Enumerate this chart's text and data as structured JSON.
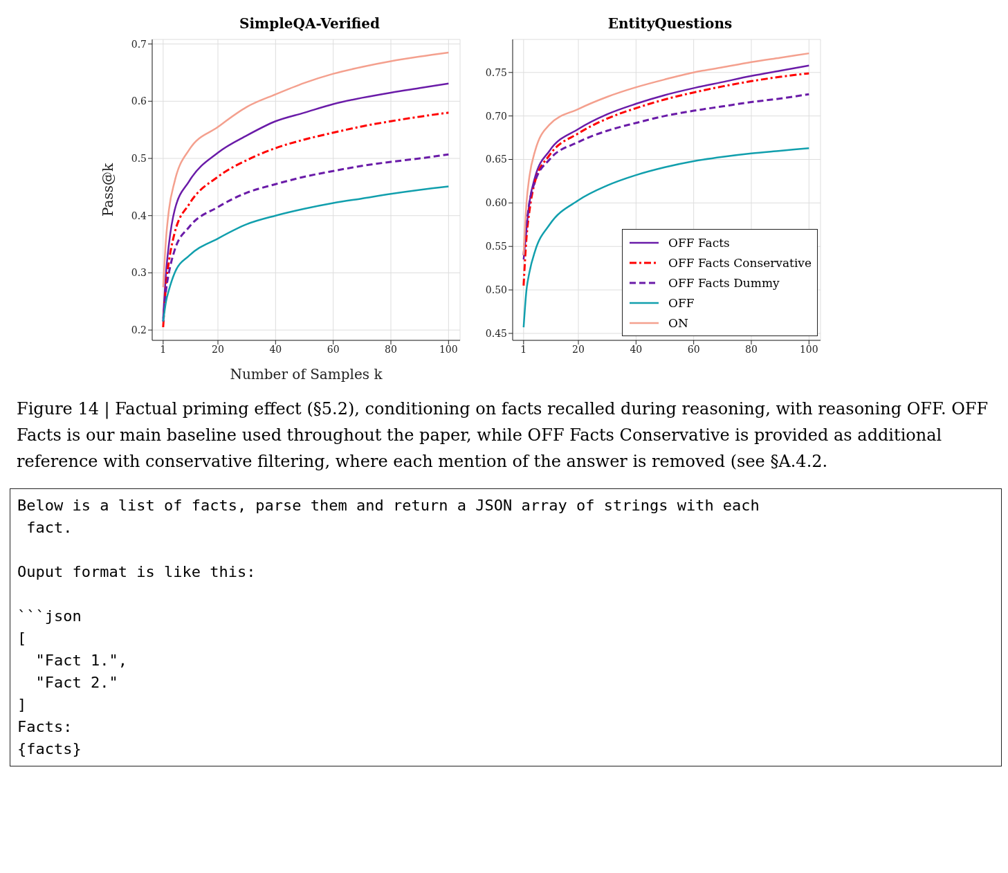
{
  "chart_data": [
    {
      "type": "line",
      "title": "SimpleQA-Verified",
      "xlabel": "Number of Samples k",
      "ylabel": "Pass@k",
      "x": [
        1,
        2,
        3,
        5,
        10,
        20,
        30,
        40,
        50,
        60,
        70,
        80,
        90,
        100
      ],
      "xlim": [
        -2.8,
        104
      ],
      "xticks": [
        1,
        20,
        40,
        60,
        80,
        100
      ],
      "ylim": [
        0.182,
        0.708
      ],
      "yticks": [
        0.2,
        0.3,
        0.4,
        0.5,
        0.6,
        0.7
      ],
      "grid": true,
      "legend": false,
      "series": [
        {
          "color": "#6a1ba8",
          "line_style": "solid",
          "values": [
            0.22,
            0.3,
            0.35,
            0.41,
            0.46,
            0.51,
            0.54,
            0.565,
            0.58,
            0.595,
            0.606,
            0.615,
            0.623,
            0.631
          ]
        },
        {
          "color": "#ff0000",
          "line_style": "dashdot",
          "values": [
            0.205,
            0.28,
            0.32,
            0.37,
            0.42,
            0.468,
            0.497,
            0.518,
            0.533,
            0.545,
            0.556,
            0.565,
            0.573,
            0.58
          ]
        },
        {
          "color": "#6a1ba8",
          "line_style": "dashed",
          "values": [
            0.215,
            0.27,
            0.3,
            0.34,
            0.38,
            0.415,
            0.44,
            0.455,
            0.468,
            0.478,
            0.487,
            0.494,
            0.5,
            0.507
          ]
        },
        {
          "color": "#119fad",
          "line_style": "solid",
          "values": [
            0.215,
            0.25,
            0.27,
            0.3,
            0.33,
            0.36,
            0.385,
            0.4,
            0.412,
            0.422,
            0.43,
            0.438,
            0.445,
            0.451
          ]
        },
        {
          "color": "#f4a08e",
          "line_style": "solid",
          "values": [
            0.275,
            0.36,
            0.41,
            0.46,
            0.515,
            0.555,
            0.59,
            0.612,
            0.632,
            0.648,
            0.66,
            0.67,
            0.678,
            0.685
          ]
        }
      ],
      "annotations": [
        "Figure 14 | Factual priming effect (§5.2), conditioning on facts recalled during reasoning, with reasoning OFF. OFF Facts is our main baseline used throughout the paper, while OFF Facts Conservative is provided as additional reference with conservative filtering, where each mention of the answer is removed (see §A.4.2.",
        "Below is a list of facts, parse them and return a JSON array of strings with each\n fact.\n\nOuput format is like this:\n\n```json\n[\n  \"Fact 1.\",\n  \"Fact 2.\"\n]\nFacts:\n{facts}"
      ]
    },
    {
      "type": "line",
      "title": "EntityQuestions",
      "x": [
        1,
        2,
        3,
        5,
        10,
        20,
        30,
        40,
        50,
        60,
        70,
        80,
        90,
        100
      ],
      "xlim": [
        -2.8,
        104
      ],
      "xticks": [
        1,
        20,
        40,
        60,
        80,
        100
      ],
      "ylim": [
        0.442,
        0.788
      ],
      "yticks": [
        0.45,
        {
          "value": 0.5,
          "label": "0.50"
        },
        0.55,
        {
          "value": 0.6,
          "label": "0.60"
        },
        0.65,
        {
          "value": 0.7,
          "label": "0.70"
        },
        0.75
      ],
      "grid": true,
      "legend": "bottom right",
      "series": [
        {
          "name": "OFF Facts",
          "color": "#6a1ba8",
          "line_style": "solid",
          "values": [
            0.535,
            0.57,
            0.6,
            0.63,
            0.66,
            0.685,
            0.702,
            0.714,
            0.724,
            0.732,
            0.739,
            0.746,
            0.752,
            0.758
          ]
        },
        {
          "name": "OFF Facts Conservative",
          "color": "#ff0000",
          "line_style": "dashdot",
          "values": [
            0.505,
            0.56,
            0.59,
            0.625,
            0.655,
            0.68,
            0.697,
            0.709,
            0.719,
            0.727,
            0.734,
            0.74,
            0.745,
            0.749
          ]
        },
        {
          "name": "OFF Facts Dummy",
          "color": "#6a1ba8",
          "line_style": "dashed",
          "values": [
            0.54,
            0.575,
            0.6,
            0.625,
            0.65,
            0.67,
            0.683,
            0.692,
            0.7,
            0.706,
            0.711,
            0.716,
            0.72,
            0.725
          ]
        },
        {
          "name": "OFF",
          "color": "#119fad",
          "line_style": "solid",
          "values": [
            0.457,
            0.5,
            0.52,
            0.545,
            0.575,
            0.603,
            0.62,
            0.632,
            0.641,
            0.648,
            0.653,
            0.657,
            0.66,
            0.663
          ]
        },
        {
          "name": "ON",
          "color": "#f4a08e",
          "line_style": "solid",
          "values": [
            0.54,
            0.6,
            0.63,
            0.66,
            0.69,
            0.708,
            0.722,
            0.733,
            0.742,
            0.75,
            0.756,
            0.762,
            0.767,
            0.772
          ]
        }
      ]
    }
  ]
}
